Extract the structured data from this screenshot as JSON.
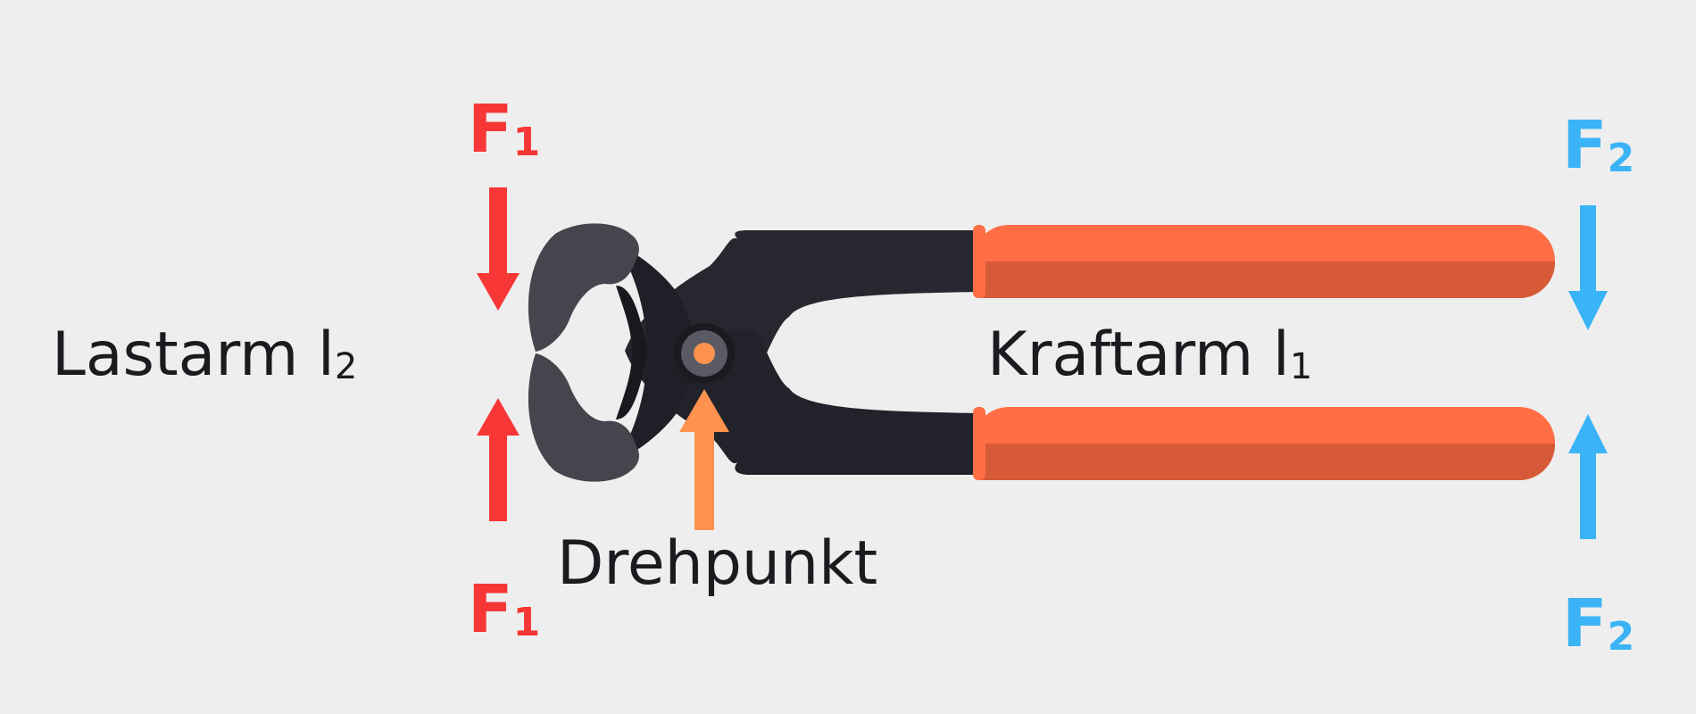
{
  "labels": {
    "load_arm": "Lastarm l",
    "load_arm_sub": "2",
    "effort_arm": "Kraftarm l",
    "effort_arm_sub": "1",
    "pivot": "Drehpunkt"
  },
  "forces": {
    "f1_symbol": "F",
    "f1_sub": "1",
    "f2_symbol": "F",
    "f2_sub": "2"
  },
  "colors": {
    "background": "#eeeeee",
    "f1": "#f73636",
    "f2": "#3ab4f6",
    "pivot_arrow": "#ff924f",
    "handle": "#ff6e45",
    "handle_shade": "#d65a37",
    "metal": "#27272f",
    "jaw": "#45454d",
    "text": "#1b1b1f"
  },
  "icons": {
    "tool": "pincers-icon",
    "pivot": "pivot-pin-icon"
  }
}
